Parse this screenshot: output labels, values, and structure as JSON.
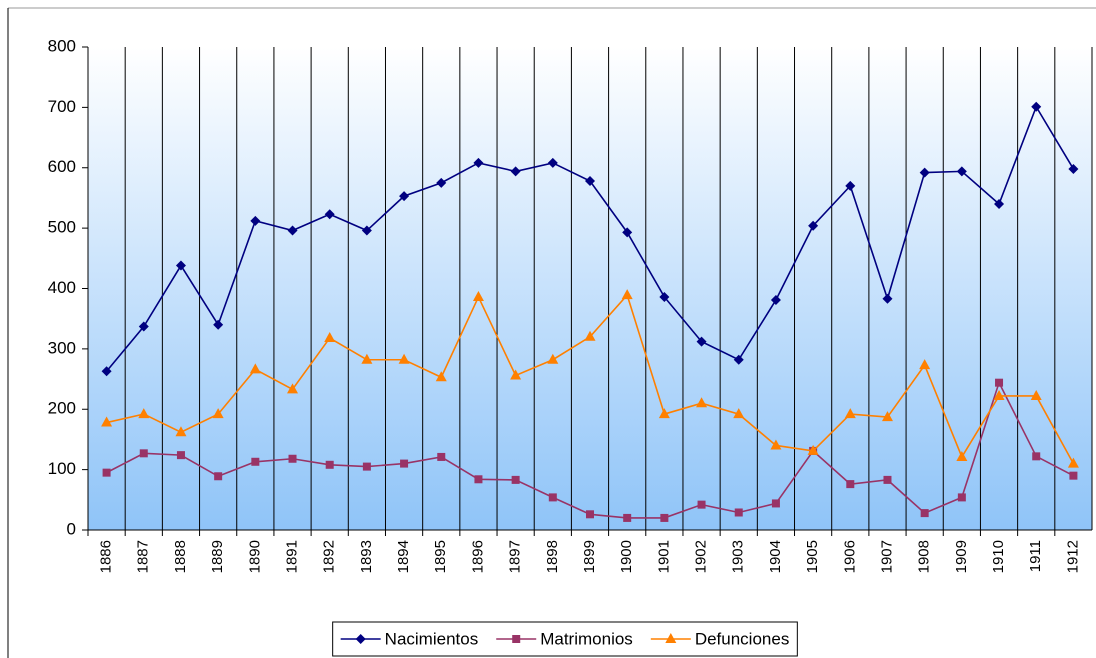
{
  "chart_data": {
    "type": "line",
    "categories": [
      "1886",
      "1887",
      "1888",
      "1889",
      "1890",
      "1891",
      "1892",
      "1893",
      "1894",
      "1895",
      "1896",
      "1897",
      "1898",
      "1899",
      "1900",
      "1901",
      "1902",
      "1903",
      "1904",
      "1905",
      "1906",
      "1907",
      "1908",
      "1909",
      "1910",
      "1911",
      "1912"
    ],
    "series": [
      {
        "name": "Nacimientos",
        "color": "#000080",
        "marker": "diamond",
        "values": [
          263,
          337,
          438,
          340,
          512,
          496,
          523,
          496,
          553,
          575,
          608,
          594,
          608,
          578,
          493,
          386,
          312,
          282,
          381,
          504,
          570,
          383,
          592,
          594,
          540,
          701,
          598
        ]
      },
      {
        "name": "Matrimonios",
        "color": "#993366",
        "marker": "square",
        "values": [
          95,
          127,
          124,
          89,
          113,
          118,
          108,
          105,
          110,
          121,
          84,
          83,
          54,
          26,
          20,
          20,
          42,
          29,
          44,
          131,
          76,
          83,
          28,
          54,
          244,
          122,
          90
        ]
      },
      {
        "name": "Defunciones",
        "color": "#ff8000",
        "marker": "triangle",
        "values": [
          178,
          192,
          162,
          192,
          266,
          233,
          318,
          282,
          282,
          253,
          386,
          256,
          282,
          320,
          389,
          192,
          210,
          192,
          140,
          131,
          192,
          187,
          273,
          121,
          222,
          222,
          110
        ]
      }
    ],
    "ylim": [
      0,
      800
    ],
    "yticks": [
      0,
      100,
      200,
      300,
      400,
      500,
      600,
      700,
      800
    ],
    "grid": true,
    "legend": "bottom"
  }
}
